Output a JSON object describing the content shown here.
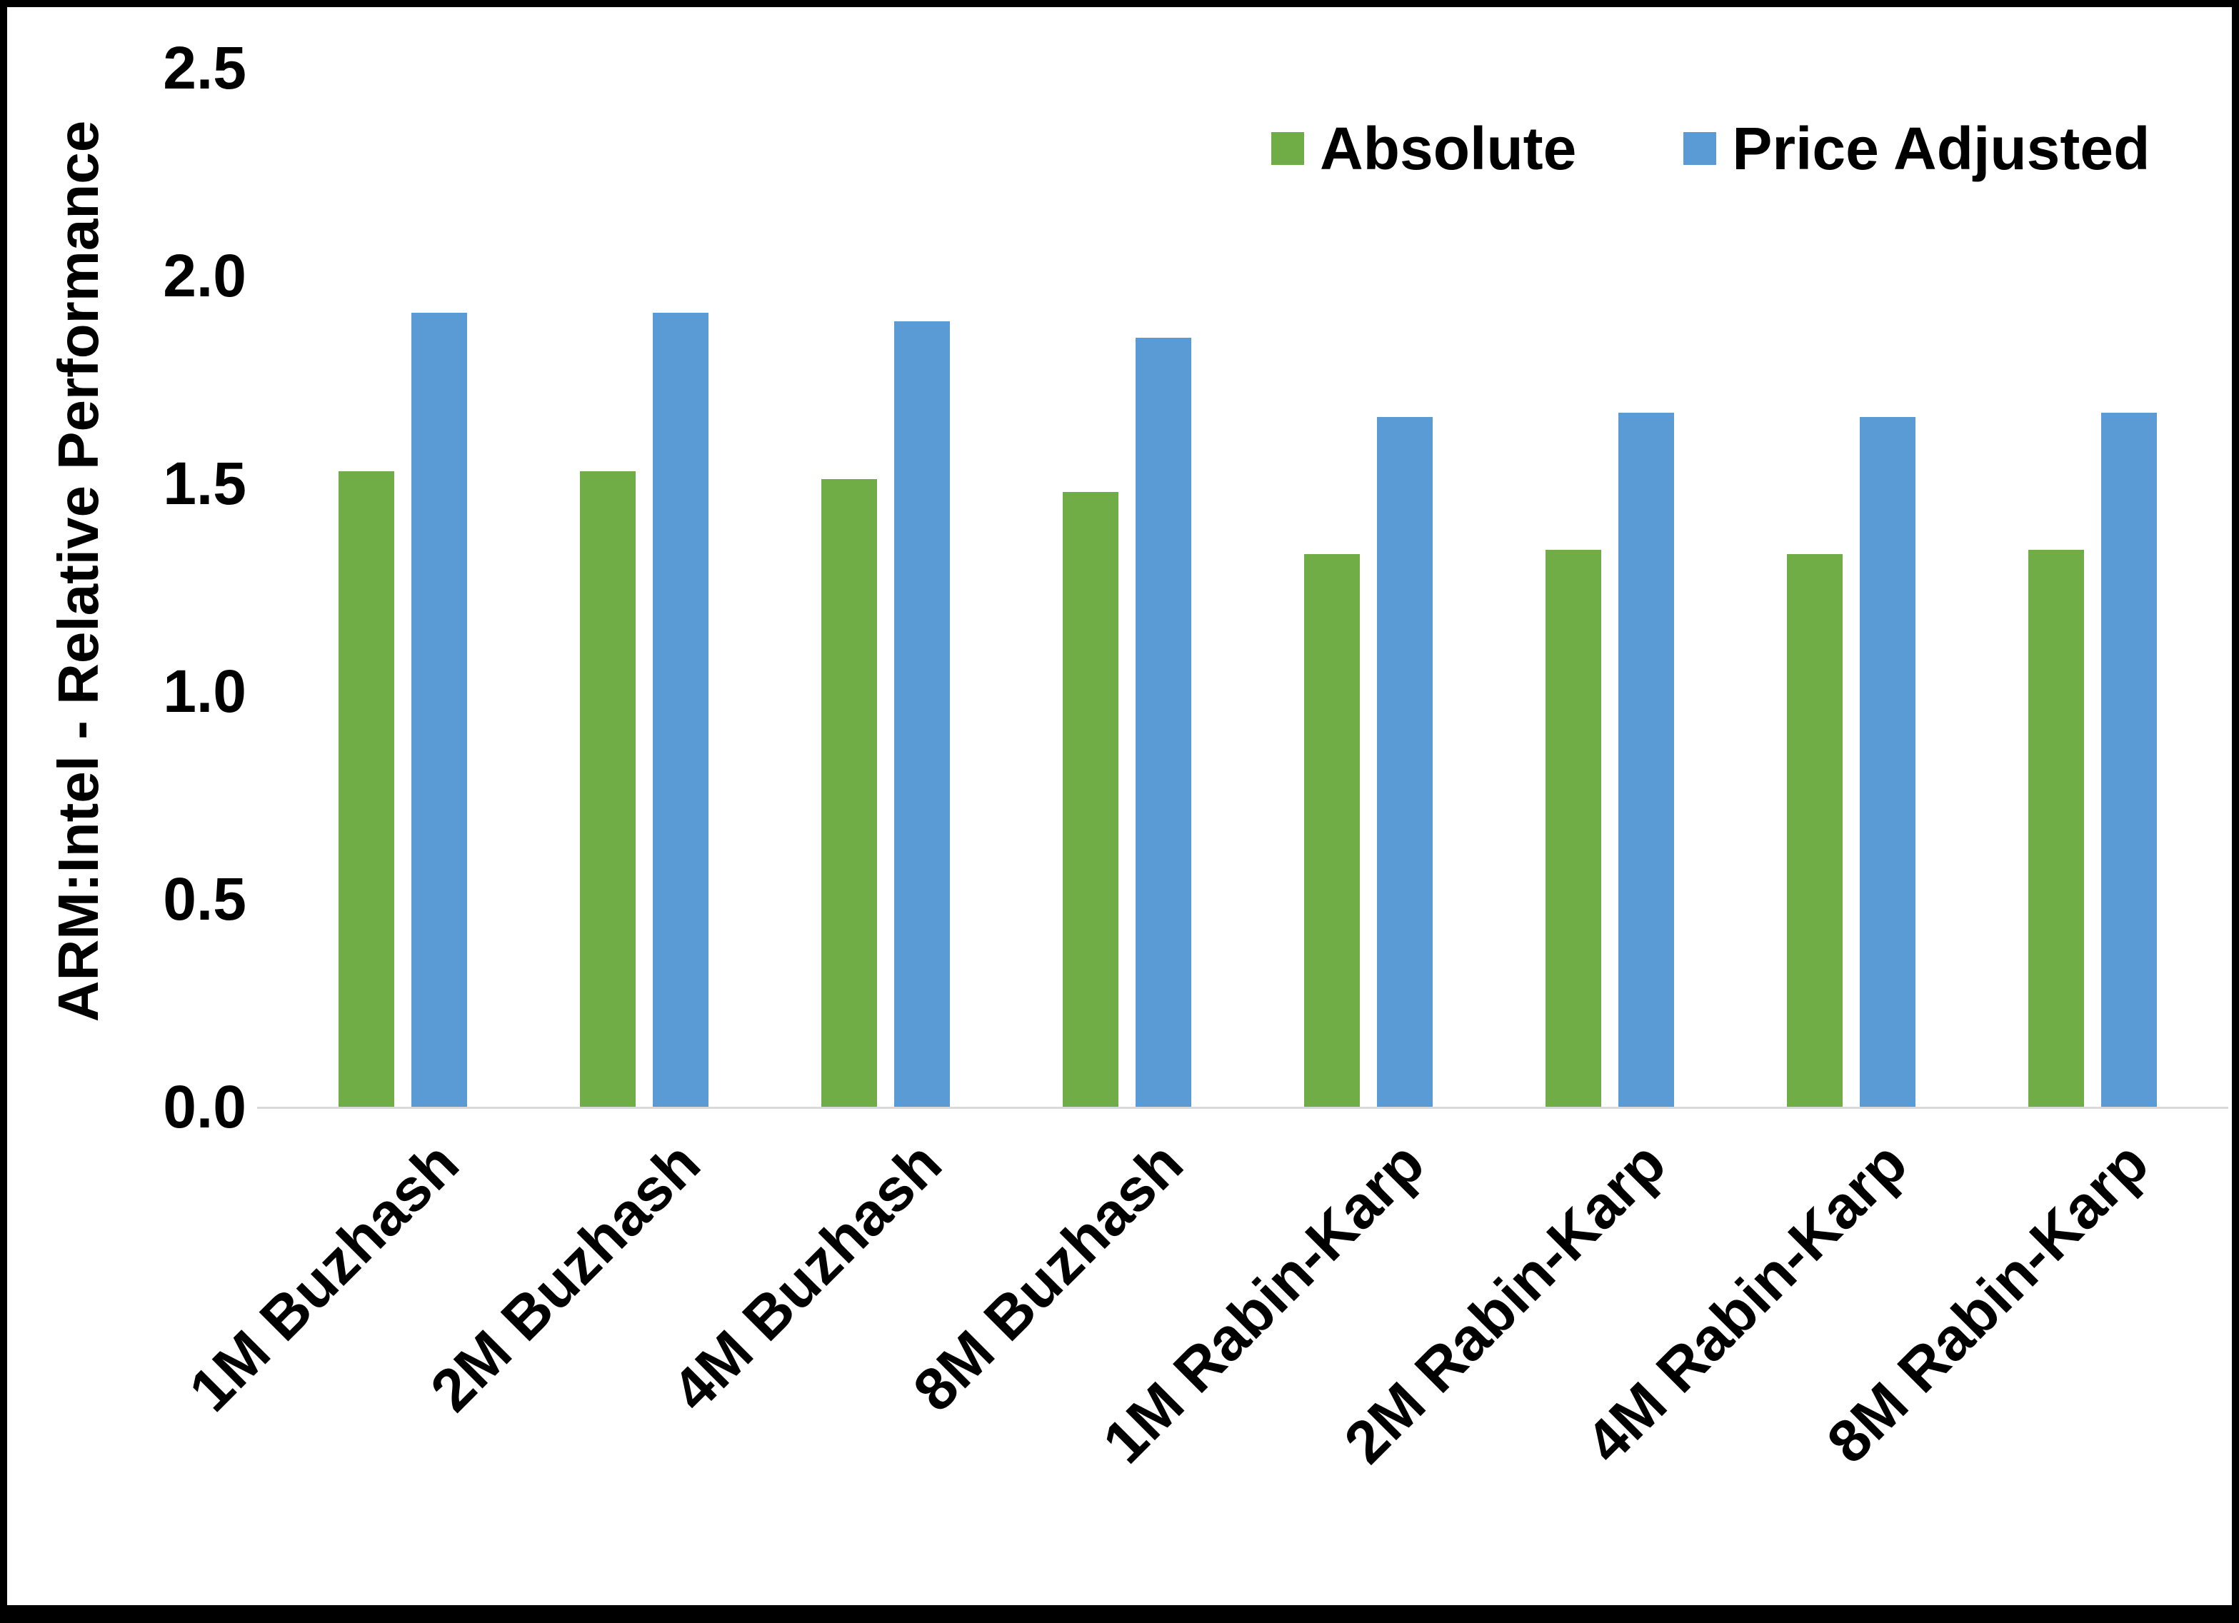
{
  "chart_data": {
    "type": "bar",
    "categories": [
      "1M Buzhash",
      "2M Buzhash",
      "4M Buzhash",
      "8M Buzhash",
      "1M Rabin-Karp",
      "2M Rabin-Karp",
      "4M Rabin-Karp",
      "8M Rabin-Karp"
    ],
    "series": [
      {
        "name": "Absolute",
        "color": "#70AD47",
        "values": [
          1.53,
          1.53,
          1.51,
          1.48,
          1.33,
          1.34,
          1.33,
          1.34
        ]
      },
      {
        "name": "Price Adjusted",
        "color": "#5B9BD5",
        "values": [
          1.91,
          1.91,
          1.89,
          1.85,
          1.66,
          1.67,
          1.66,
          1.67
        ]
      }
    ],
    "ylabel": "ARM:Intel - Relative Performance",
    "xlabel": "",
    "ylim": [
      0,
      2.5
    ],
    "yticks": [
      0.0,
      0.5,
      1.0,
      1.5,
      2.0,
      2.5
    ],
    "ytick_labels": [
      "0.0",
      "0.5",
      "1.0",
      "1.5",
      "2.0",
      "2.5"
    ],
    "grid": false,
    "legend_position": "top-right",
    "axis_line_color": "#D9D9D9",
    "frame_color": "#000000",
    "background_color": "#FFFFFF"
  }
}
